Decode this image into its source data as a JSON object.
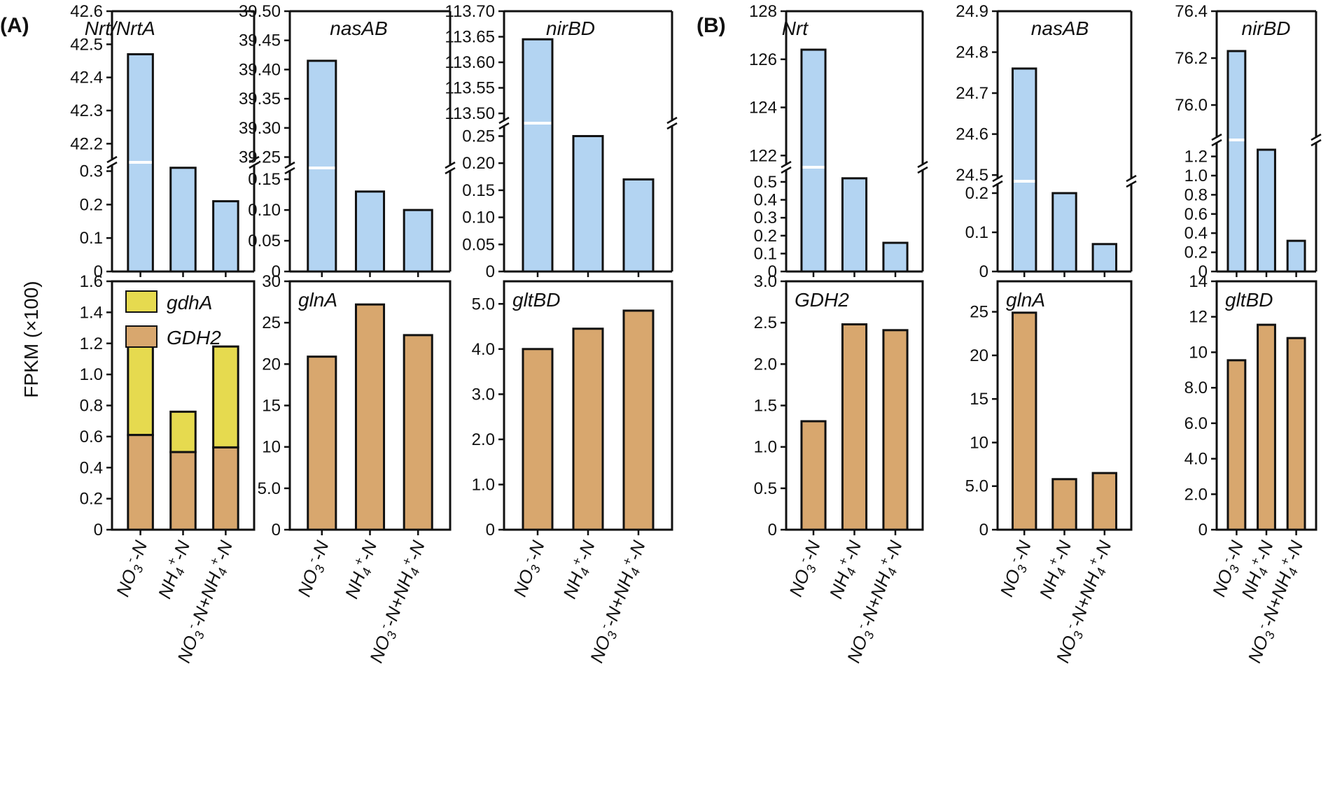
{
  "panel_labels": [
    "(A)",
    "(B)"
  ],
  "y_axis_label": "FPKM (×100)",
  "x_categories": [
    [
      "NO",
      "3",
      "-",
      "-N"
    ],
    [
      "NH",
      "4",
      "+",
      "-N"
    ],
    [
      "NO",
      "3",
      "-",
      "-N+NH",
      "4",
      "+",
      "-N"
    ]
  ],
  "colors": {
    "nitrate_bar": "#b3d4f2",
    "assimilation_bar": "#d8a76e",
    "gdhA_bar": "#e6da4f",
    "axis": "#111111",
    "break_mark": "#ffffff"
  },
  "chart_data": [
    {
      "type": "bar",
      "panel": "A",
      "title": "Nrt/NrtA",
      "categories": [
        "NO3--N",
        "NH4+-N",
        "NO3--N+NH4+-N"
      ],
      "values": [
        42.47,
        0.31,
        0.21
      ],
      "y_break": true,
      "lower_range": [
        0,
        0.32
      ],
      "lower_ticks": [
        "0",
        "0.1",
        "0.2",
        "0.3"
      ],
      "upper_range": [
        42.15,
        42.6
      ],
      "upper_ticks": [
        "42.2",
        "42.3",
        "42.4",
        "42.5",
        "42.6"
      ]
    },
    {
      "type": "bar",
      "panel": "A",
      "title": "nasAB",
      "categories": [
        "NO3--N",
        "NH4+-N",
        "NO3--N+NH4+-N"
      ],
      "values": [
        39.415,
        0.13,
        0.1
      ],
      "y_break": true,
      "lower_range": [
        0,
        0.165
      ],
      "lower_ticks": [
        "0",
        "0.05",
        "0.10",
        "0.15"
      ],
      "upper_range": [
        39.235,
        39.5
      ],
      "upper_ticks": [
        "39.25",
        "39.30",
        "39.35",
        "39.40",
        "39.45",
        "39.50"
      ]
    },
    {
      "type": "bar",
      "panel": "A",
      "title": "nirBD",
      "categories": [
        "NO3--N",
        "NH4+-N",
        "NO3--N+NH4+-N"
      ],
      "values": [
        113.645,
        0.25,
        0.17
      ],
      "y_break": true,
      "lower_range": [
        0,
        0.27
      ],
      "lower_ticks": [
        "0",
        "0.05",
        "0.10",
        "0.15",
        "0.20",
        "0.25"
      ],
      "upper_range": [
        113.485,
        113.7
      ],
      "upper_ticks": [
        "113.50",
        "113.55",
        "113.60",
        "113.65",
        "113.70"
      ]
    },
    {
      "type": "bar",
      "panel": "B",
      "title": "Nrt",
      "categories": [
        "NO3--N",
        "NH4+-N",
        "NO3--N+NH4+-N"
      ],
      "values": [
        126.4,
        0.52,
        0.16
      ],
      "y_break": true,
      "lower_range": [
        0,
        0.57
      ],
      "lower_ticks": [
        "0",
        "0.1",
        "0.2",
        "0.3",
        "0.4",
        "0.5"
      ],
      "upper_range": [
        121.6,
        128
      ],
      "upper_ticks": [
        "122",
        "124",
        "126",
        "128"
      ]
    },
    {
      "type": "bar",
      "panel": "B",
      "title": "nasAB",
      "categories": [
        "NO3--N",
        "NH4+-N",
        "NO3--N+NH4+-N"
      ],
      "values": [
        24.76,
        0.2,
        0.07
      ],
      "y_break": true,
      "lower_range": [
        0,
        0.225
      ],
      "lower_ticks": [
        "0",
        "0.1",
        "0.2"
      ],
      "upper_range": [
        24.49,
        24.9
      ],
      "upper_ticks": [
        "24.5",
        "24.6",
        "24.7",
        "24.8",
        "24.9"
      ]
    },
    {
      "type": "bar",
      "panel": "B",
      "title": "nirBD",
      "categories": [
        "NO3--N",
        "NH4+-N",
        "NO3--N+NH4+-N"
      ],
      "values": [
        76.23,
        1.27,
        0.32
      ],
      "y_break": true,
      "lower_range": [
        0,
        1.35
      ],
      "lower_ticks": [
        "0",
        "0.2",
        "0.4",
        "0.6",
        "0.8",
        "1.0",
        "1.2"
      ],
      "upper_range": [
        75.86,
        76.4
      ],
      "upper_ticks": [
        "76.0",
        "76.2",
        "76.4"
      ]
    },
    {
      "type": "bar",
      "panel": "A",
      "stacked": true,
      "categories": [
        "NO3--N",
        "NH4+-N",
        "NO3--N+NH4+-N"
      ],
      "series": [
        {
          "name": "GDH2",
          "values": [
            0.61,
            0.5,
            0.53
          ]
        },
        {
          "name": "gdhA",
          "values": [
            0.58,
            0.26,
            0.65
          ]
        }
      ],
      "legend": [
        "gdhA",
        "GDH2"
      ],
      "legend_position": "top-left",
      "ylim": [
        0,
        1.6
      ],
      "ticks": [
        "0",
        "0.2",
        "0.4",
        "0.6",
        "0.8",
        "1.0",
        "1.2",
        "1.4",
        "1.6"
      ]
    },
    {
      "type": "bar",
      "panel": "A",
      "title": "glnA",
      "categories": [
        "NO3--N",
        "NH4+-N",
        "NO3--N+NH4+-N"
      ],
      "values": [
        20.9,
        27.2,
        23.5
      ],
      "ylim": [
        0,
        30
      ],
      "ticks": [
        "0",
        "5.0",
        "10",
        "15",
        "20",
        "25",
        "30"
      ]
    },
    {
      "type": "bar",
      "panel": "A",
      "title": "gltBD",
      "categories": [
        "NO3--N",
        "NH4+-N",
        "NO3--N+NH4+-N"
      ],
      "values": [
        4.0,
        4.45,
        4.85
      ],
      "ylim": [
        0,
        5.5
      ],
      "ticks": [
        "0",
        "1.0",
        "2.0",
        "3.0",
        "4.0",
        "5.0"
      ]
    },
    {
      "type": "bar",
      "panel": "B",
      "title": "GDH2",
      "categories": [
        "NO3--N",
        "NH4+-N",
        "NO3--N+NH4+-N"
      ],
      "values": [
        1.31,
        2.48,
        2.41
      ],
      "ylim": [
        0,
        3.0
      ],
      "ticks": [
        "0",
        "0.5",
        "1.0",
        "1.5",
        "2.0",
        "2.5",
        "3.0"
      ]
    },
    {
      "type": "bar",
      "panel": "B",
      "title": "glnA",
      "categories": [
        "NO3--N",
        "NH4+-N",
        "NO3--N+NH4+-N"
      ],
      "values": [
        24.9,
        5.8,
        6.5
      ],
      "ylim": [
        0,
        28.5
      ],
      "ticks": [
        "0",
        "5.0",
        "10",
        "15",
        "20",
        "25"
      ]
    },
    {
      "type": "bar",
      "panel": "B",
      "title": "gltBD",
      "categories": [
        "NO3--N",
        "NH4+-N",
        "NO3--N+NH4+-N"
      ],
      "values": [
        9.55,
        11.55,
        10.8
      ],
      "ylim": [
        0,
        14
      ],
      "ticks": [
        "0",
        "2.0",
        "4.0",
        "6.0",
        "8.0",
        "10",
        "12",
        "14"
      ]
    }
  ]
}
